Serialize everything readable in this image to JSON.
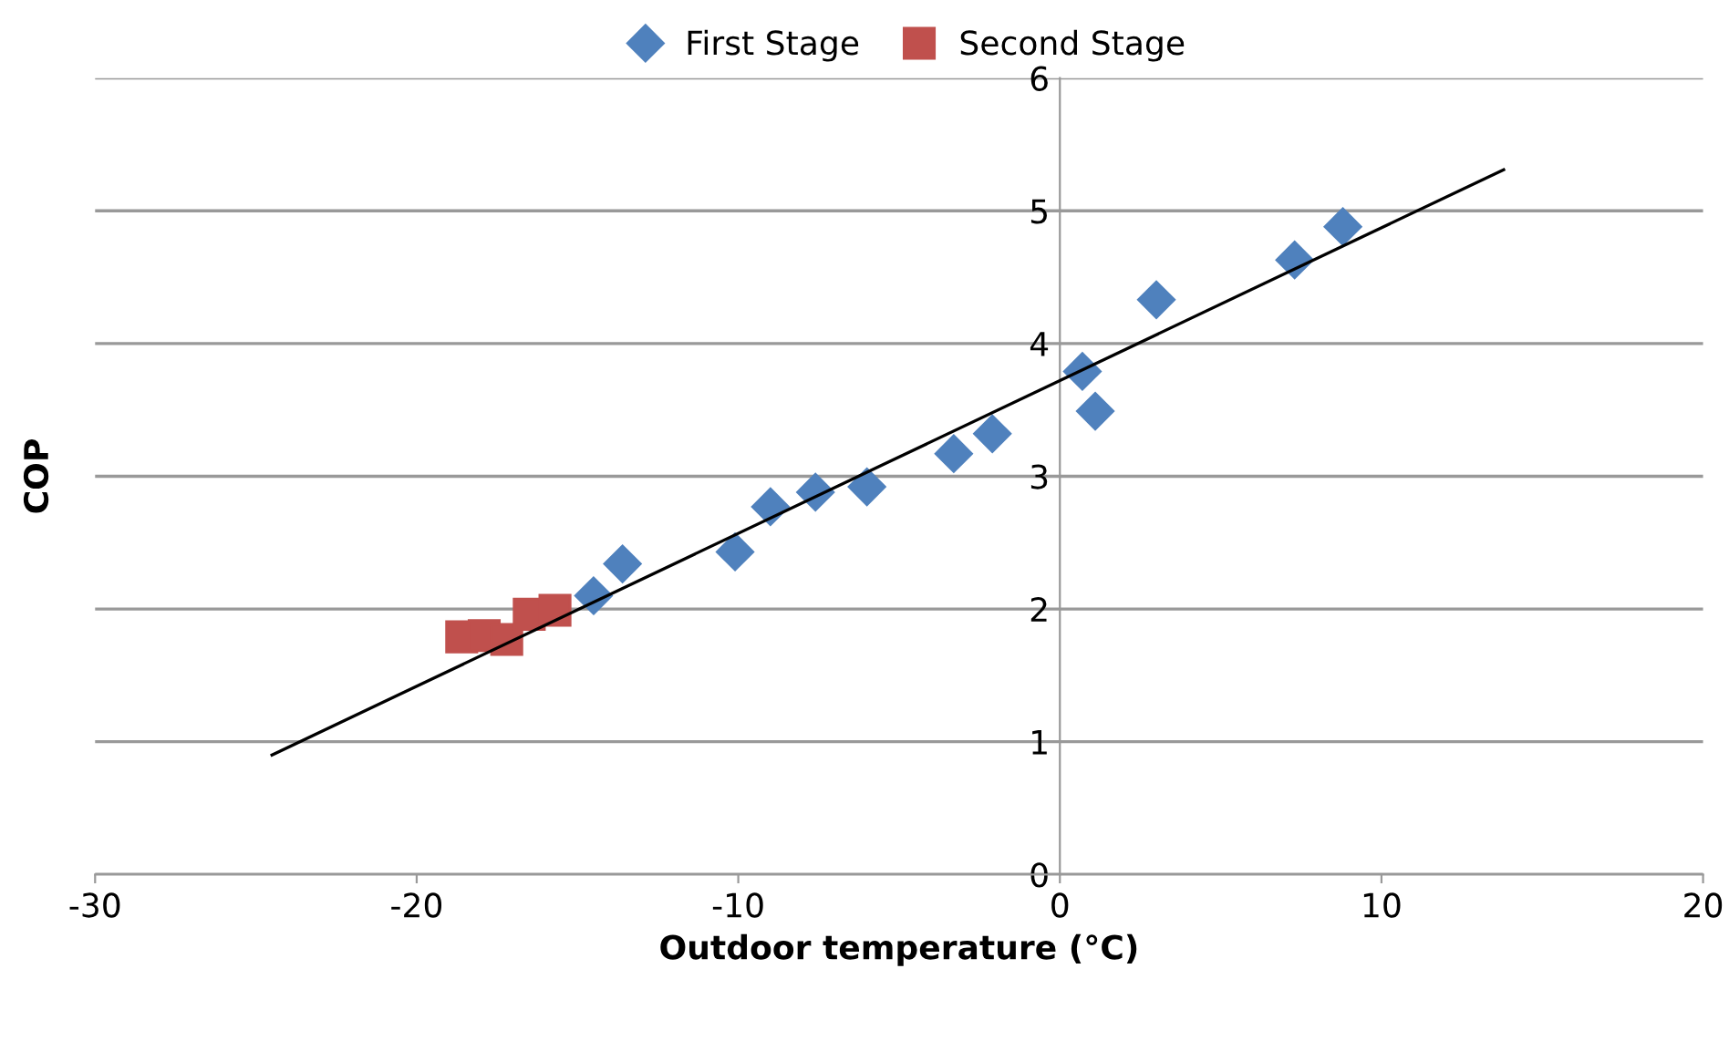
{
  "chart_data": {
    "type": "scatter",
    "xlabel": "Outdoor temperature (°C)",
    "ylabel": "COP",
    "xlim": [
      -30,
      20
    ],
    "xticks": [
      -30,
      -20,
      -10,
      0,
      10,
      20
    ],
    "ylim": [
      0,
      6
    ],
    "yticks": [
      0,
      1,
      2,
      3,
      4,
      5,
      6
    ],
    "grid": "y",
    "legend": "top",
    "series": [
      {
        "name": "First Stage",
        "color": "#4f81bd",
        "marker": "diamond",
        "x": [
          -14.5,
          -13.6,
          -10.1,
          -9.0,
          -7.6,
          -6.0,
          -3.3,
          -2.1,
          0.7,
          1.1,
          3.0,
          7.3,
          8.8
        ],
        "values": [
          2.1,
          2.34,
          2.43,
          2.77,
          2.88,
          2.92,
          3.17,
          3.32,
          3.79,
          3.49,
          4.33,
          4.63,
          4.88
        ]
      },
      {
        "name": "Second Stage",
        "color": "#c0504d",
        "marker": "square",
        "x": [
          -18.6,
          -17.9,
          -17.2,
          -16.5,
          -15.7
        ],
        "values": [
          1.79,
          1.8,
          1.77,
          1.96,
          1.99
        ]
      },
      {
        "type": "line",
        "color": "#000000",
        "x": [
          -24.5,
          13.8
        ],
        "values": [
          0.9,
          5.31
        ]
      }
    ]
  }
}
